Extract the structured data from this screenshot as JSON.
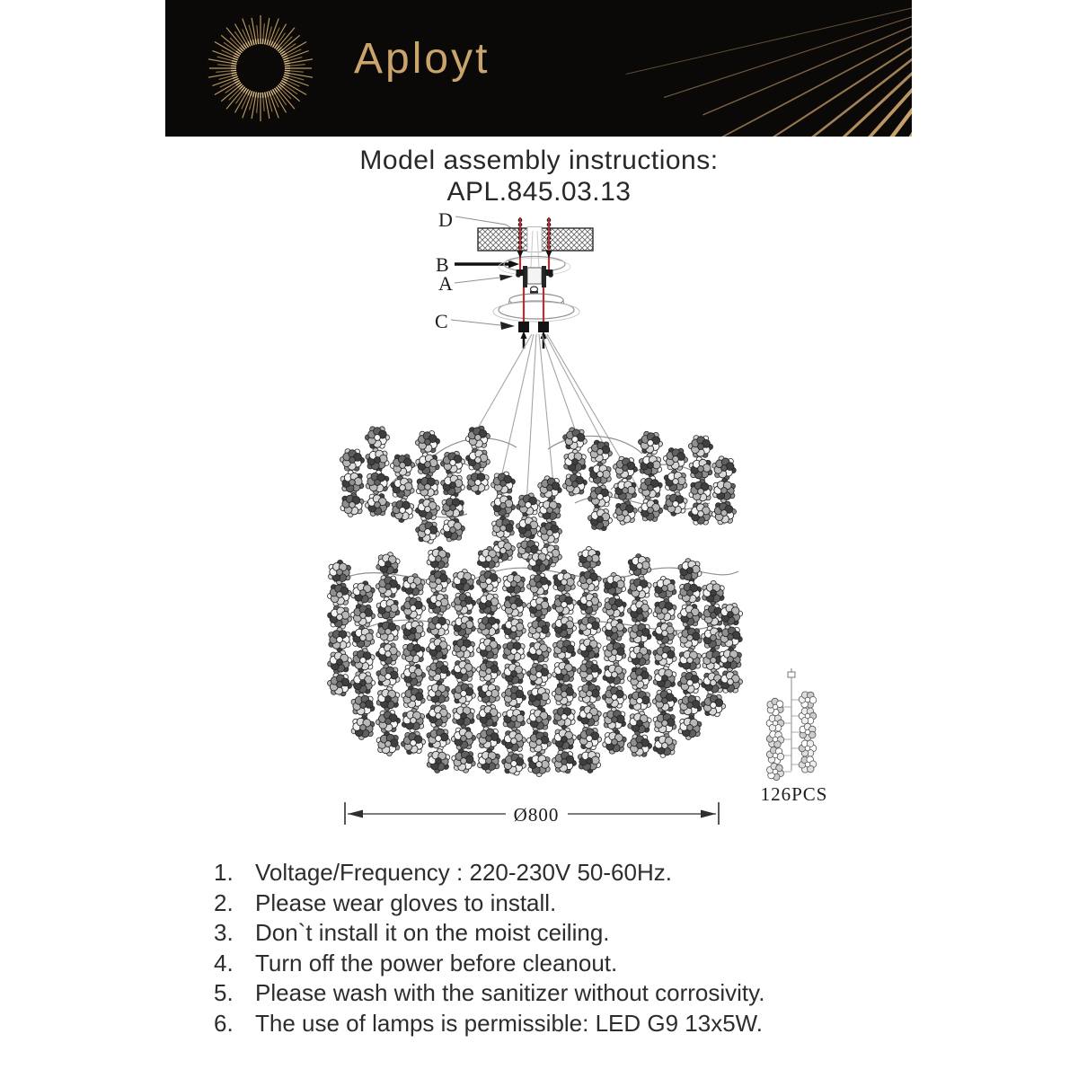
{
  "brand": {
    "name": "Aployt"
  },
  "title": {
    "heading": "Model assembly instructions:",
    "model": "APL.845.03.13"
  },
  "diagram": {
    "label_d": "D",
    "label_b": "B",
    "label_a": "A",
    "label_c": "C",
    "dimension_label": "Ø800",
    "parts_count_label": "126PCS"
  },
  "instructions": {
    "items": [
      {
        "num": "1.",
        "text": "Voltage/Frequency : 220-230V 50-60Hz."
      },
      {
        "num": "2.",
        "text": "Please wear gloves to install."
      },
      {
        "num": "3.",
        "text": "Don`t install it on the moist ceiling."
      },
      {
        "num": "4.",
        "text": "Turn off the power before cleanout."
      },
      {
        "num": "5.",
        "text": "Please wash with the sanitizer without corrosivity."
      },
      {
        "num": "6.",
        "text": "The use of lamps is permissible: LED G9 13x5W."
      }
    ]
  },
  "colors": {
    "banner_background": "#0b0907",
    "brand_gold": "#c9a46c",
    "ray_gold": "#d2a972",
    "screw_red": "#b13232",
    "body_text": "#2d2d2d",
    "drawing_line": "#555555"
  }
}
